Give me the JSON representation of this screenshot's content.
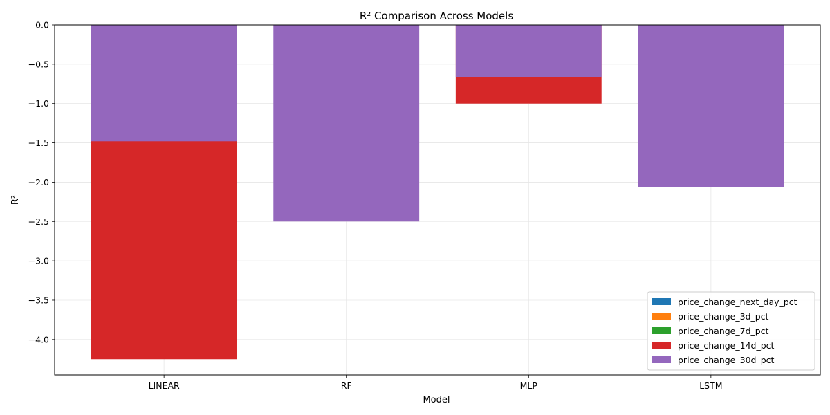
{
  "chart_data": {
    "type": "bar",
    "title": "R² Comparison Across Models",
    "xlabel": "Model",
    "ylabel": "R²",
    "categories": [
      "LINEAR",
      "RF",
      "MLP",
      "LSTM"
    ],
    "ylim": [
      -4.45,
      0.0
    ],
    "yticks": [
      0.0,
      -0.5,
      -1.0,
      -1.5,
      -2.0,
      -2.5,
      -3.0,
      -3.5,
      -4.0
    ],
    "ytick_labels": [
      "0.0",
      "−0.5",
      "−1.0",
      "−1.5",
      "−2.0",
      "−2.5",
      "−3.0",
      "−3.5",
      "−4.0"
    ],
    "grid": true,
    "legend_position": "bottom-right",
    "series": [
      {
        "name": "price_change_next_day_pct",
        "color": "#1f77b4",
        "values": [
          null,
          null,
          null,
          null
        ]
      },
      {
        "name": "price_change_3d_pct",
        "color": "#ff7f0e",
        "values": [
          null,
          null,
          null,
          null
        ]
      },
      {
        "name": "price_change_7d_pct",
        "color": "#2ca02c",
        "values": [
          null,
          null,
          null,
          null
        ]
      },
      {
        "name": "price_change_14d_pct",
        "color": "#d62728",
        "values": [
          -4.25,
          null,
          -1.0,
          null
        ]
      },
      {
        "name": "price_change_30d_pct",
        "color": "#9467bd",
        "values": [
          -1.48,
          -2.5,
          -0.66,
          -2.06
        ]
      }
    ]
  }
}
